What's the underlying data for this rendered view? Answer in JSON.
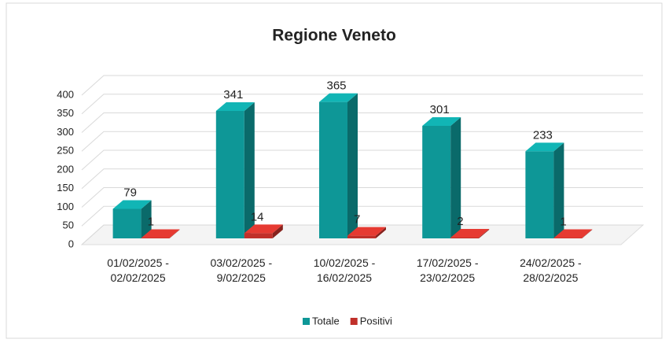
{
  "chart_data": {
    "type": "bar",
    "title": "Regione Veneto",
    "categories": [
      "01/02/2025 - 02/02/2025",
      "03/02/2025 - 9/02/2025",
      "10/02/2025 - 16/02/2025",
      "17/02/2025 - 23/02/2025",
      "24/02/2025 - 28/02/2025"
    ],
    "series": [
      {
        "name": "Totale",
        "color": "#0e9797",
        "values": [
          79,
          341,
          365,
          301,
          233
        ]
      },
      {
        "name": "Positivi",
        "color": "#c0302a",
        "values": [
          1,
          14,
          7,
          2,
          1
        ]
      }
    ],
    "ylim": [
      0,
      400
    ],
    "yticks": [
      0,
      50,
      100,
      150,
      200,
      250,
      300,
      350,
      400
    ],
    "grid": true,
    "legend": "bottom"
  }
}
